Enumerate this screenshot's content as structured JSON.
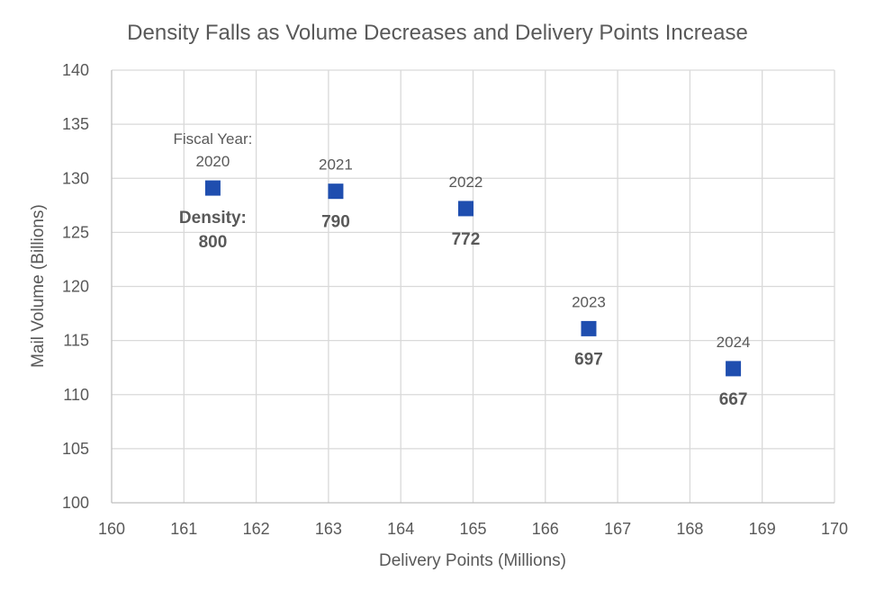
{
  "chart_data": {
    "type": "scatter",
    "title": "Density Falls as Volume Decreases and Delivery Points Increase",
    "xlabel": "Delivery Points (Millions)",
    "ylabel": "Mail Volume (Billions)",
    "xlim": [
      160,
      170
    ],
    "ylim": [
      100,
      140
    ],
    "x_ticks": [
      "160",
      "161",
      "162",
      "163",
      "164",
      "165",
      "166",
      "167",
      "168",
      "169",
      "170"
    ],
    "y_ticks": [
      "100",
      "105",
      "110",
      "115",
      "120",
      "125",
      "130",
      "135",
      "140"
    ],
    "grid": true,
    "marker": "square",
    "color": "#1f4eaf",
    "points": [
      {
        "year_prefix": "Fiscal Year:",
        "year": "2020",
        "density_prefix": "Density:",
        "density": "800",
        "x": 161.4,
        "y": 129.1
      },
      {
        "year_prefix": "",
        "year": "2021",
        "density_prefix": "",
        "density": "790",
        "x": 163.1,
        "y": 128.8
      },
      {
        "year_prefix": "",
        "year": "2022",
        "density_prefix": "",
        "density": "772",
        "x": 164.9,
        "y": 127.2
      },
      {
        "year_prefix": "",
        "year": "2023",
        "density_prefix": "",
        "density": "697",
        "x": 166.6,
        "y": 116.1
      },
      {
        "year_prefix": "",
        "year": "2024",
        "density_prefix": "",
        "density": "667",
        "x": 168.6,
        "y": 112.4
      }
    ]
  }
}
